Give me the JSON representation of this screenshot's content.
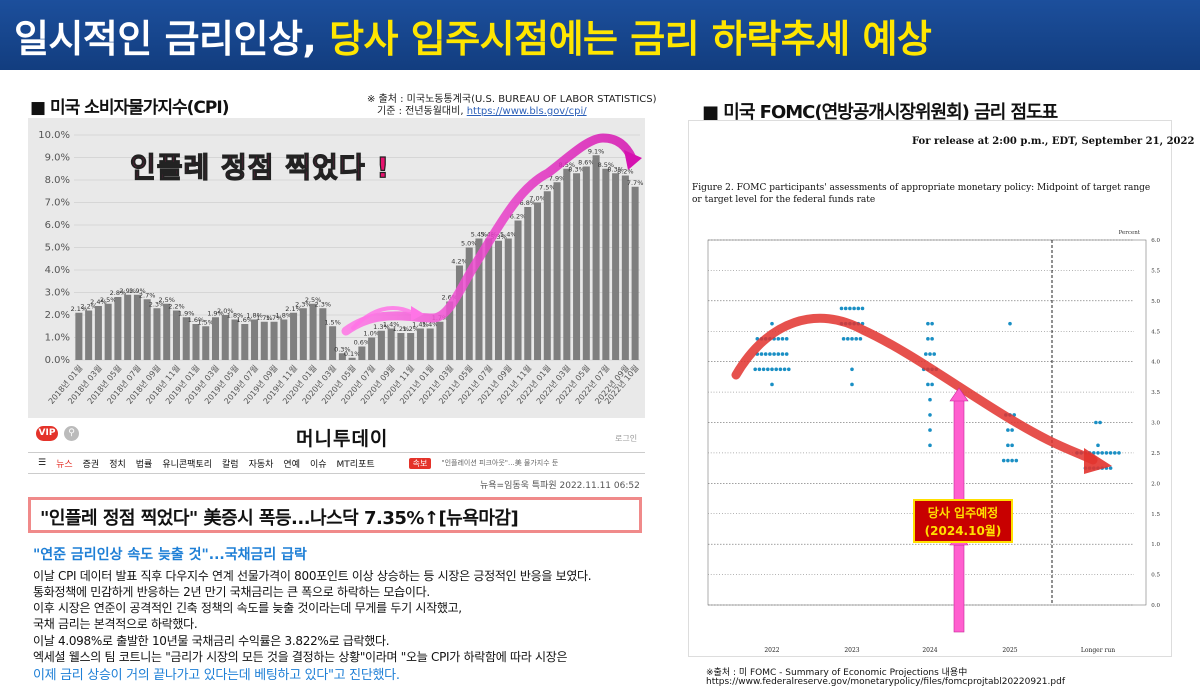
{
  "banner": {
    "title_part1": "일시적인 금리인상, ",
    "title_part2": "당사 입주시점에는 금리 하락추세 예상"
  },
  "cpi_section": {
    "title": "■ 미국 소비자물가지수(CPI)",
    "source_line1": "※ 출처 : 미국노동통계국(U.S. BUREAU OF LABOR STATISTICS)",
    "source_line2_prefix": "기준 : 전년동월대비, ",
    "source_url": "https://www.bls.gov/cpi/",
    "callout": "인플레 정점 찍었다 !"
  },
  "article": {
    "vip": "VIP",
    "search_icon": "search-icon",
    "logo": "머니투데이",
    "login": "로그인",
    "nav": [
      "뉴스",
      "증권",
      "정치",
      "법률",
      "유니콘팩토리",
      "칼럼",
      "자동차",
      "연예",
      "이슈",
      "MT리포트"
    ],
    "nav_badge": "속보",
    "nav_ticker": "\"인플레이션 피크아웃\"...美 물가지수 둔",
    "byline": "뉴욕=임동욱 특파원  2022.11.11 06:52",
    "headline": "\"인플레 정점 찍었다\" 美증시 폭등...나스닥 7.35%↑[뉴욕마감]",
    "subheadline": "\"연준 금리인상 속도 늦출 것\"...국채금리 급락",
    "body": [
      "이날 CPI 데이터 발표 직후 다우지수 연계 선물가격이 800포인트 이상 상승하는 등 시장은 긍정적인 반응을 보였다.",
      "통화정책에 민감하게 반응하는 2년 만기 국채금리는 큰 폭으로 하락하는 모습이다.",
      "이후 시장은 연준이 공격적인 긴축 정책의 속도를 늦출 것이라는데 무게를 두기 시작했고,",
      "국채 금리는 본격적으로 하락했다.",
      "이날 4.098%로 출발한 10년물 국채금리 수익률은 3.822%로 급락했다.",
      "엑세셜 웰스의 팀 코트니는 \"금리가 시장의 모든 것을 결정하는 상황\"이라며 \"오늘 CPI가 하락함에 따라 시장은"
    ],
    "body_last": "이제 금리 상승이 거의 끝나가고 있다는데 베팅하고 있다\"고 진단했다."
  },
  "fomc_section": {
    "title": "■ 미국 FOMC(연방공개시장위원회) 금리 점도표",
    "release": "For release at 2:00 p.m., EDT, September 21, 2022",
    "figure_line1": "Figure 2.  FOMC participants' assessments of appropriate monetary policy:  Midpoint of target range",
    "figure_line2": "or target level for the federal funds rate",
    "percent_label": "Percent",
    "move_label_line1": "당사 입주예정",
    "move_label_line2": "(2024.10월)",
    "footnote1": "※출처 : 미 FOMC - Summary of Economic Projections 내용中",
    "footnote2": "https://www.federalreserve.gov/monetarypolicy/files/fomcprojtabl20220921.pdf"
  },
  "chart_data": [
    {
      "type": "bar",
      "title": "",
      "ylim": [
        0,
        10
      ],
      "yticks": [
        "0.0%",
        "1.0%",
        "2.0%",
        "3.0%",
        "4.0%",
        "5.0%",
        "6.0%",
        "7.0%",
        "8.0%",
        "9.0%",
        "10.0%"
      ],
      "x_tick_labels": [
        "2018년 01월",
        "2018년 03월",
        "2018년 05월",
        "2018년 07월",
        "2018년 09월",
        "2018년 11월",
        "2019년 01월",
        "2019년 03월",
        "2019년 05월",
        "2019년 07월",
        "2019년 09월",
        "2019년 11월",
        "2020년 01월",
        "2020년 03월",
        "2020년 05월",
        "2020년 07월",
        "2020년 09월",
        "2020년 11월",
        "2021년 01월",
        "2021년 03월",
        "2021년 05월",
        "2021년 07월",
        "2021년 09월",
        "2021년 11월",
        "2022년 01월",
        "2022년 03월",
        "2022년 05월",
        "2022년 07월",
        "2022년 09월"
      ],
      "x_extra_label": "2022년 10월",
      "values": [
        2.1,
        2.2,
        2.4,
        2.5,
        2.8,
        2.9,
        2.9,
        2.7,
        2.3,
        2.5,
        2.2,
        1.9,
        1.6,
        1.5,
        1.9,
        2.0,
        1.8,
        1.6,
        1.8,
        1.7,
        1.7,
        1.8,
        2.1,
        2.3,
        2.5,
        2.3,
        1.5,
        0.3,
        0.1,
        0.6,
        1.0,
        1.3,
        1.4,
        1.2,
        1.2,
        1.4,
        1.4,
        1.7,
        2.6,
        4.2,
        5.0,
        5.4,
        5.4,
        5.3,
        5.4,
        6.2,
        6.8,
        7.0,
        7.5,
        7.9,
        8.5,
        8.3,
        8.6,
        9.1,
        8.5,
        8.3,
        8.2,
        7.7
      ],
      "labels": [
        "2.1%",
        "2.2%",
        "2.4%",
        "2.5%",
        "2.8%",
        "2.9%",
        "2.9%",
        "2.7%",
        "2.3%",
        "2.5%",
        "2.2%",
        "1.9%",
        "1.6%",
        "1.5%",
        "1.9%",
        "2.0%",
        "1.8%",
        "1.6%",
        "1.8%",
        "1.7%",
        "1.7%",
        "1.8%",
        "2.1%",
        "2.3%",
        "2.5%",
        "2.3%",
        "1.5%",
        "0.3%",
        "0.1%",
        "0.6%",
        "1.0%",
        "1.3%",
        "1.4%",
        "1.2%",
        "1.2%",
        "1.4%",
        "1.4%",
        "1.7%",
        "2.6%",
        "4.2%",
        "5.0%",
        "5.4%",
        "5.4%",
        "5.3%",
        "5.4%",
        "6.2%",
        "6.8%",
        "7.0%",
        "7.5%",
        "7.9%",
        "8.5%",
        "8.3%",
        "8.6%",
        "9.1%",
        "8.5%",
        "8.3%",
        "8.2%",
        "7.7%"
      ],
      "bar_color": "#7f7f7f",
      "grid": true
    },
    {
      "type": "scatter",
      "title": "",
      "ylim": [
        0,
        6
      ],
      "yticks": [
        "0.0",
        "0.5",
        "1.0",
        "1.5",
        "2.0",
        "2.5",
        "3.0",
        "3.5",
        "4.0",
        "4.5",
        "5.0",
        "5.5",
        "6.0"
      ],
      "x_labels": [
        "2022",
        "2023",
        "2024",
        "2025",
        "Longer run"
      ],
      "dot_color": "#1a8fc4",
      "dots": [
        {
          "x": "2022",
          "values": [
            3.625,
            3.875,
            3.875,
            3.875,
            3.875,
            3.875,
            3.875,
            3.875,
            3.875,
            3.875,
            4.125,
            4.125,
            4.125,
            4.125,
            4.125,
            4.125,
            4.125,
            4.125,
            4.375,
            4.375,
            4.375,
            4.375,
            4.375,
            4.375,
            4.375,
            4.375,
            4.625
          ]
        },
        {
          "x": "2023",
          "values": [
            3.875,
            4.375,
            4.375,
            4.375,
            4.375,
            4.375,
            4.625,
            4.625,
            4.625,
            4.625,
            4.625,
            4.625,
            4.875,
            4.875,
            4.875,
            4.875,
            4.875,
            4.875,
            3.625
          ]
        },
        {
          "x": "2024",
          "values": [
            2.625,
            2.875,
            3.125,
            3.375,
            3.625,
            3.625,
            3.875,
            3.875,
            3.875,
            3.875,
            4.125,
            4.125,
            4.125,
            4.375,
            4.375,
            4.625,
            4.625
          ]
        },
        {
          "x": "2025",
          "values": [
            2.375,
            2.375,
            2.375,
            2.375,
            2.625,
            2.625,
            2.875,
            2.875,
            3.125,
            3.125,
            3.125,
            4.625
          ]
        },
        {
          "x": "Longer run",
          "values": [
            2.25,
            2.25,
            2.25,
            2.25,
            2.25,
            2.25,
            2.25,
            2.5,
            2.5,
            2.5,
            2.5,
            2.5,
            2.5,
            2.5,
            2.5,
            2.5,
            2.5,
            2.5,
            2.625,
            3.0,
            3.0
          ]
        }
      ]
    }
  ]
}
